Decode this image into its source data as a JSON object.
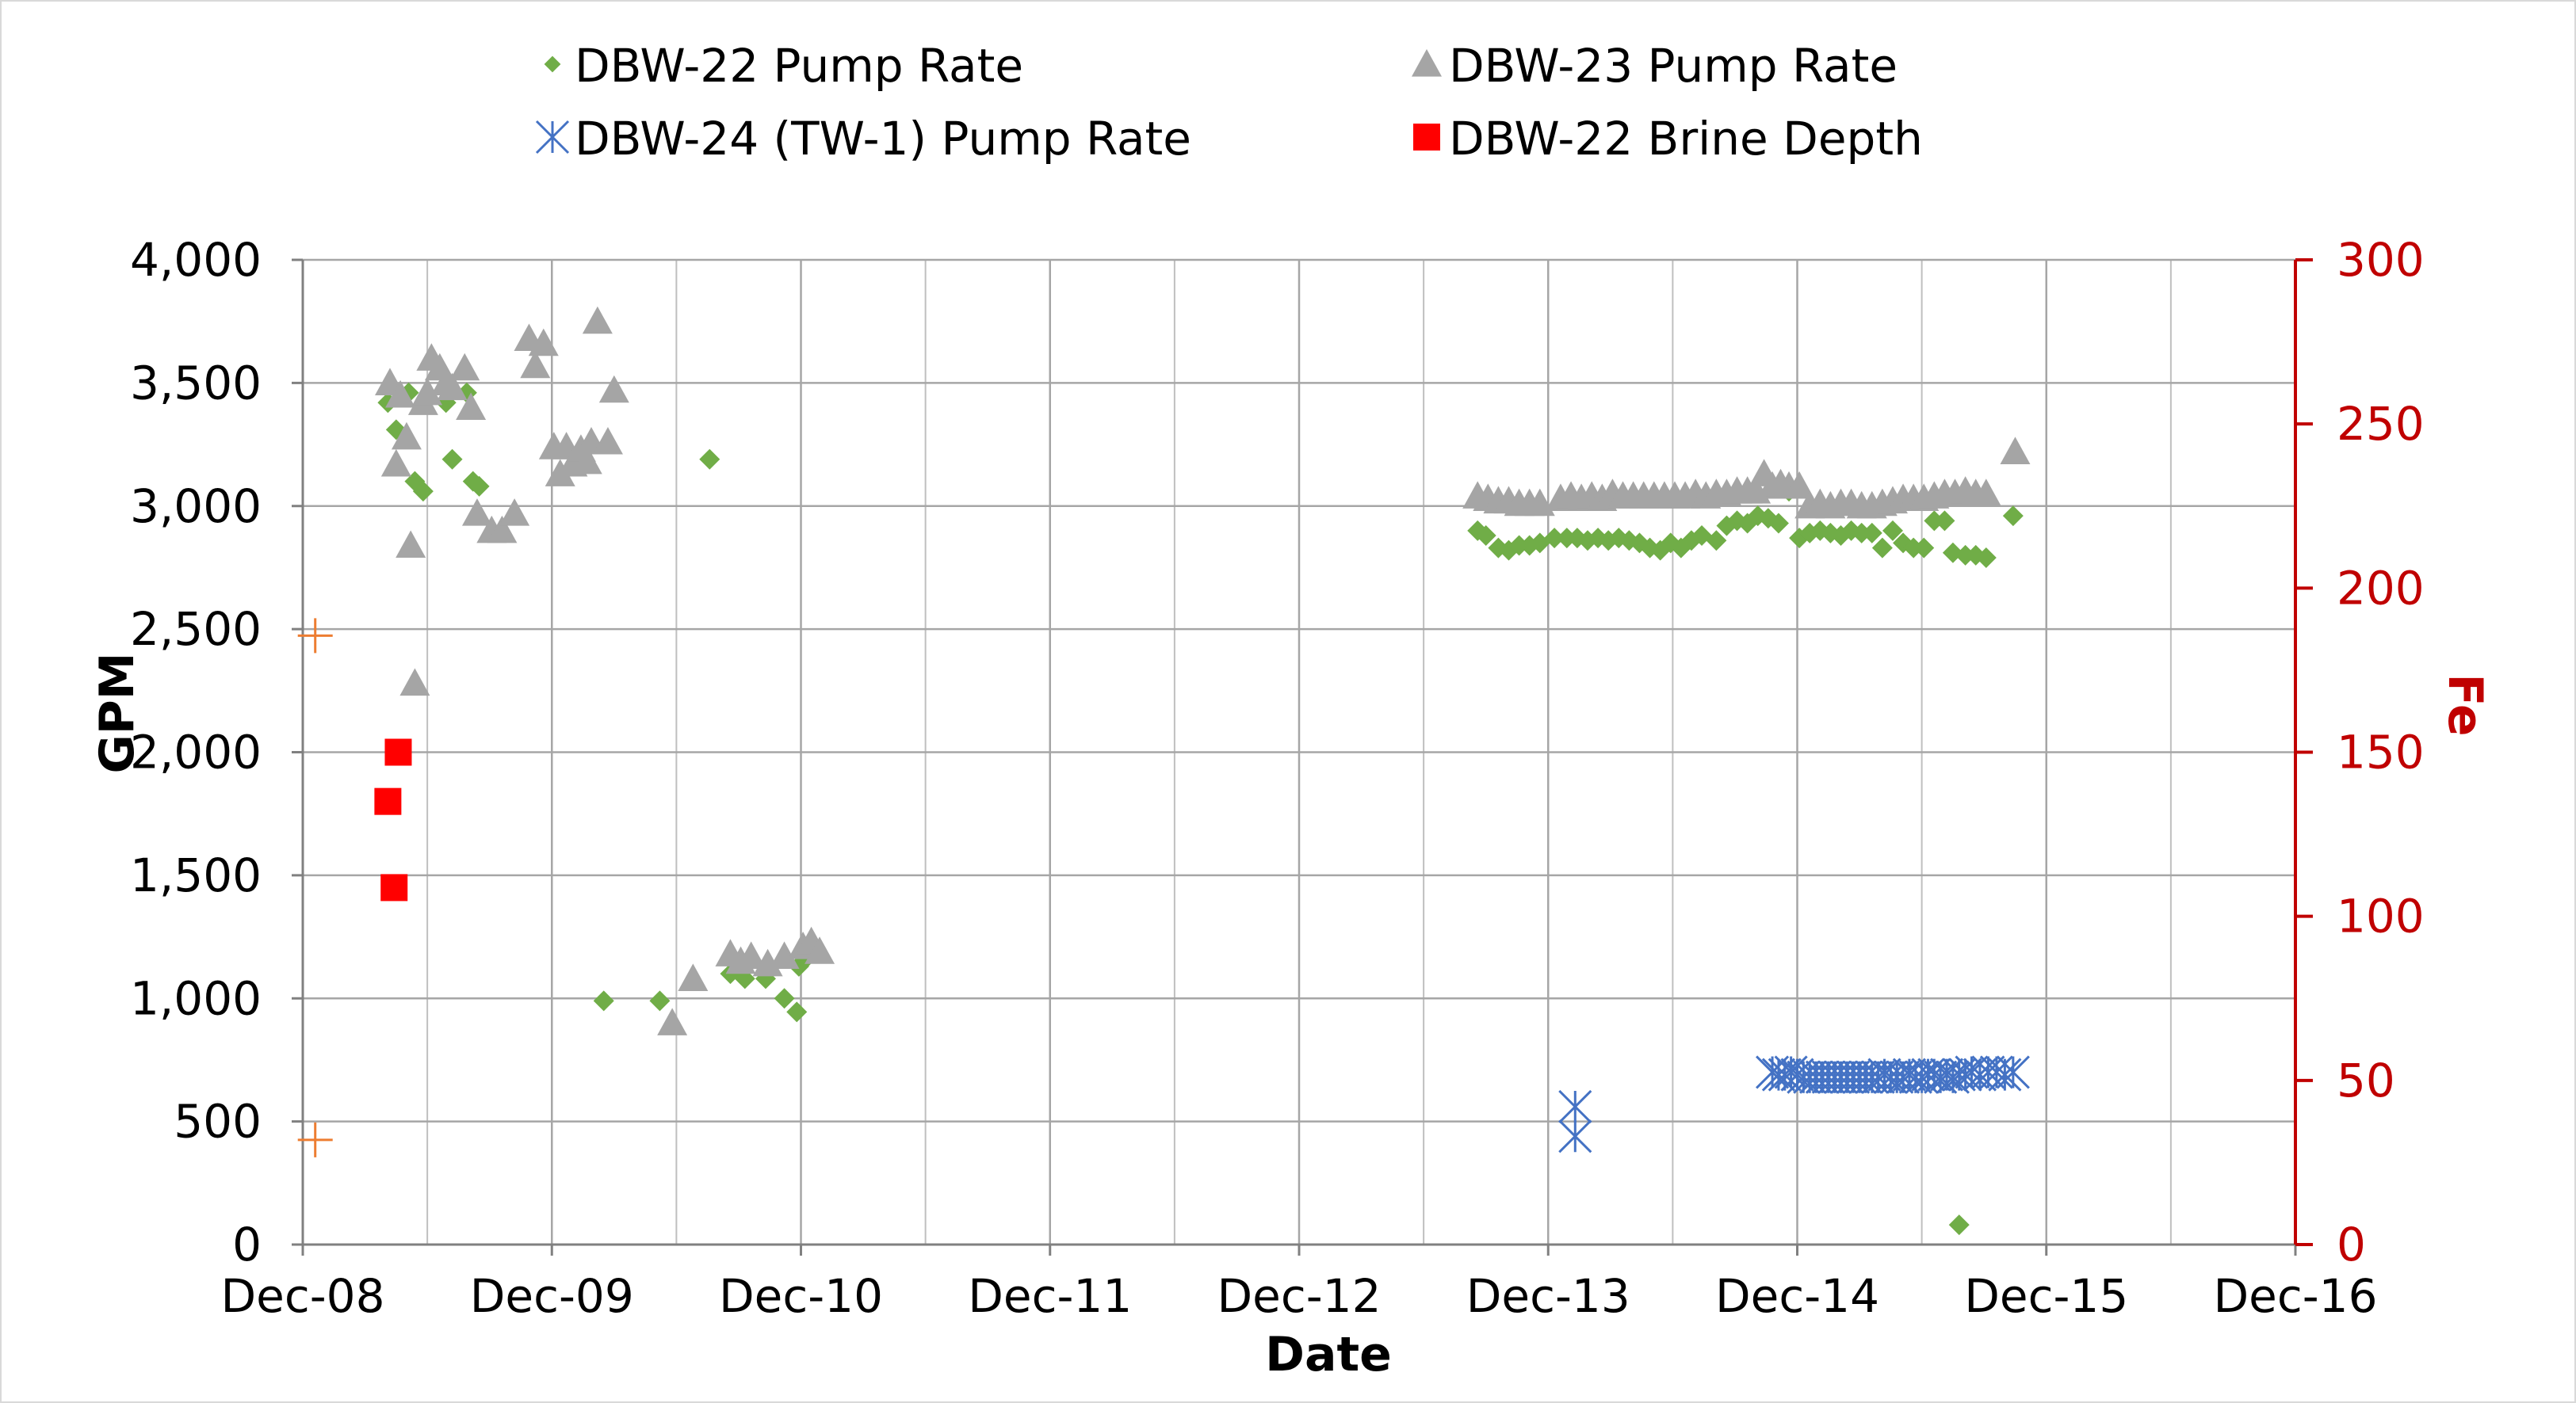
{
  "chart_data": {
    "type": "scatter",
    "xlabel": "Date",
    "ylabel": "GPM",
    "y2label": "Fe",
    "x_unit": "months since Dec-08",
    "xlim": [
      0,
      96
    ],
    "ylim": [
      0,
      4000
    ],
    "y2lim": [
      0,
      300
    ],
    "x_ticks": [
      {
        "value": 0,
        "label": "Dec-08"
      },
      {
        "value": 12,
        "label": "Dec-09"
      },
      {
        "value": 24,
        "label": "Dec-10"
      },
      {
        "value": 36,
        "label": "Dec-11"
      },
      {
        "value": 48,
        "label": "Dec-12"
      },
      {
        "value": 60,
        "label": "Dec-13"
      },
      {
        "value": 72,
        "label": "Dec-14"
      },
      {
        "value": 84,
        "label": "Dec-15"
      },
      {
        "value": 96,
        "label": "Dec-16"
      }
    ],
    "y_ticks": [
      {
        "value": 0,
        "label": "0"
      },
      {
        "value": 500,
        "label": "500"
      },
      {
        "value": 1000,
        "label": "1,000"
      },
      {
        "value": 1500,
        "label": "1,500"
      },
      {
        "value": 2000,
        "label": "2,000"
      },
      {
        "value": 2500,
        "label": "2,500"
      },
      {
        "value": 3000,
        "label": "3,000"
      },
      {
        "value": 3500,
        "label": "3,500"
      },
      {
        "value": 4000,
        "label": "4,000"
      }
    ],
    "y2_ticks": [
      {
        "value": 0,
        "label": "0"
      },
      {
        "value": 50,
        "label": "50"
      },
      {
        "value": 100,
        "label": "100"
      },
      {
        "value": 150,
        "label": "150"
      },
      {
        "value": 200,
        "label": "200"
      },
      {
        "value": 250,
        "label": "250"
      },
      {
        "value": 300,
        "label": "300"
      }
    ],
    "grid": true,
    "legend_position": "top",
    "colors": {
      "dbw22": "#70ad47",
      "dbw23": "#a5a5a5",
      "dbw24": "#4472c4",
      "brine": "#ff0000",
      "fe": "#ed7d31",
      "y2axis": "#c00000",
      "grid": "#a6a6a6",
      "axis": "#808080"
    },
    "series": [
      {
        "name": "DBW-22 Pump Rate",
        "marker": "diamond",
        "color": "#70ad47",
        "axis": "left",
        "points": [
          [
            4.1,
            3420
          ],
          [
            4.5,
            3310
          ],
          [
            5.1,
            3460
          ],
          [
            5.4,
            3100
          ],
          [
            5.8,
            3060
          ],
          [
            6.9,
            3420
          ],
          [
            7.2,
            3190
          ],
          [
            7.9,
            3460
          ],
          [
            8.2,
            3100
          ],
          [
            8.5,
            3080
          ],
          [
            14.5,
            990
          ],
          [
            17.2,
            990
          ],
          [
            20.6,
            1100
          ],
          [
            21.3,
            1080
          ],
          [
            22.3,
            1080
          ],
          [
            23.2,
            1000
          ],
          [
            23.8,
            945
          ],
          [
            23.9,
            1130
          ],
          [
            24.1,
            1150
          ],
          [
            19.6,
            3190
          ],
          [
            56.6,
            2900
          ],
          [
            57.0,
            2880
          ],
          [
            57.6,
            2830
          ],
          [
            58.1,
            2820
          ],
          [
            58.6,
            2840
          ],
          [
            59.1,
            2840
          ],
          [
            59.6,
            2850
          ],
          [
            60.3,
            2870
          ],
          [
            60.9,
            2870
          ],
          [
            61.4,
            2870
          ],
          [
            61.9,
            2860
          ],
          [
            62.4,
            2870
          ],
          [
            62.9,
            2860
          ],
          [
            63.4,
            2870
          ],
          [
            63.9,
            2860
          ],
          [
            64.4,
            2850
          ],
          [
            64.9,
            2830
          ],
          [
            65.4,
            2820
          ],
          [
            65.9,
            2850
          ],
          [
            66.4,
            2830
          ],
          [
            66.9,
            2860
          ],
          [
            67.4,
            2880
          ],
          [
            68.1,
            2860
          ],
          [
            68.6,
            2920
          ],
          [
            69.1,
            2940
          ],
          [
            69.6,
            2930
          ],
          [
            70.1,
            2960
          ],
          [
            70.6,
            2950
          ],
          [
            71.1,
            2930
          ],
          [
            71.6,
            3060
          ],
          [
            72.1,
            2870
          ],
          [
            72.6,
            2890
          ],
          [
            73.1,
            2900
          ],
          [
            73.6,
            2890
          ],
          [
            74.1,
            2880
          ],
          [
            74.6,
            2900
          ],
          [
            75.1,
            2890
          ],
          [
            75.6,
            2890
          ],
          [
            76.1,
            2830
          ],
          [
            76.6,
            2900
          ],
          [
            77.1,
            2850
          ],
          [
            77.6,
            2830
          ],
          [
            78.1,
            2830
          ],
          [
            78.6,
            2940
          ],
          [
            79.1,
            2940
          ],
          [
            79.5,
            2810
          ],
          [
            80.1,
            2800
          ],
          [
            80.6,
            2800
          ],
          [
            81.1,
            2790
          ],
          [
            82.4,
            2960
          ],
          [
            79.8,
            80
          ]
        ]
      },
      {
        "name": "DBW-23 Pump Rate",
        "marker": "triangle",
        "color": "#a5a5a5",
        "axis": "left",
        "points": [
          [
            4.2,
            3500
          ],
          [
            4.5,
            3170
          ],
          [
            4.7,
            3450
          ],
          [
            5.0,
            3280
          ],
          [
            5.2,
            2840
          ],
          [
            5.4,
            2280
          ],
          [
            5.8,
            3420
          ],
          [
            6.0,
            3460
          ],
          [
            6.2,
            3600
          ],
          [
            6.6,
            3560
          ],
          [
            6.9,
            3500
          ],
          [
            7.2,
            3480
          ],
          [
            7.8,
            3560
          ],
          [
            8.1,
            3400
          ],
          [
            8.4,
            2970
          ],
          [
            9.1,
            2900
          ],
          [
            9.6,
            2900
          ],
          [
            10.2,
            2970
          ],
          [
            10.9,
            3680
          ],
          [
            11.2,
            3570
          ],
          [
            11.6,
            3660
          ],
          [
            12.1,
            3240
          ],
          [
            12.4,
            3130
          ],
          [
            12.7,
            3240
          ],
          [
            13.0,
            3170
          ],
          [
            13.4,
            3230
          ],
          [
            13.7,
            3180
          ],
          [
            13.9,
            3260
          ],
          [
            14.2,
            3750
          ],
          [
            14.7,
            3260
          ],
          [
            15.0,
            3470
          ],
          [
            17.8,
            900
          ],
          [
            18.8,
            1080
          ],
          [
            20.6,
            1180
          ],
          [
            21.1,
            1150
          ],
          [
            21.6,
            1170
          ],
          [
            22.4,
            1140
          ],
          [
            23.2,
            1170
          ],
          [
            24.1,
            1210
          ],
          [
            24.5,
            1230
          ],
          [
            24.9,
            1190
          ],
          [
            56.6,
            3040
          ],
          [
            57.1,
            3030
          ],
          [
            57.6,
            3020
          ],
          [
            58.1,
            3020
          ],
          [
            58.6,
            3010
          ],
          [
            59.1,
            3010
          ],
          [
            59.6,
            3010
          ],
          [
            60.6,
            3030
          ],
          [
            61.1,
            3040
          ],
          [
            61.6,
            3030
          ],
          [
            62.1,
            3040
          ],
          [
            62.6,
            3030
          ],
          [
            63.1,
            3050
          ],
          [
            63.6,
            3040
          ],
          [
            64.1,
            3040
          ],
          [
            64.6,
            3040
          ],
          [
            65.1,
            3040
          ],
          [
            65.6,
            3040
          ],
          [
            66.1,
            3040
          ],
          [
            66.6,
            3040
          ],
          [
            67.1,
            3050
          ],
          [
            67.6,
            3040
          ],
          [
            68.1,
            3050
          ],
          [
            68.6,
            3050
          ],
          [
            69.1,
            3060
          ],
          [
            69.6,
            3060
          ],
          [
            70.0,
            3060
          ],
          [
            70.4,
            3130
          ],
          [
            70.8,
            3080
          ],
          [
            71.2,
            3090
          ],
          [
            71.6,
            3080
          ],
          [
            72.1,
            3080
          ],
          [
            72.6,
            3000
          ],
          [
            73.1,
            3010
          ],
          [
            73.6,
            3000
          ],
          [
            74.1,
            3010
          ],
          [
            74.6,
            3010
          ],
          [
            75.1,
            3000
          ],
          [
            75.6,
            3000
          ],
          [
            76.1,
            3010
          ],
          [
            76.6,
            3020
          ],
          [
            77.1,
            3030
          ],
          [
            77.6,
            3030
          ],
          [
            78.1,
            3030
          ],
          [
            78.6,
            3040
          ],
          [
            79.1,
            3050
          ],
          [
            79.6,
            3050
          ],
          [
            80.1,
            3060
          ],
          [
            80.6,
            3050
          ],
          [
            81.1,
            3050
          ],
          [
            82.5,
            3220
          ]
        ]
      },
      {
        "name": "DBW-24 (TW-1) Pump Rate",
        "marker": "asterisk",
        "color": "#4472c4",
        "axis": "left",
        "points": [
          [
            61.3,
            560
          ],
          [
            61.3,
            440
          ],
          [
            70.8,
            700
          ],
          [
            71.1,
            690
          ],
          [
            71.4,
            690
          ],
          [
            71.7,
            700
          ],
          [
            72.0,
            690
          ],
          [
            72.3,
            680
          ],
          [
            72.6,
            680
          ],
          [
            72.9,
            680
          ],
          [
            73.2,
            680
          ],
          [
            73.5,
            680
          ],
          [
            73.8,
            680
          ],
          [
            74.1,
            680
          ],
          [
            74.4,
            680
          ],
          [
            74.7,
            680
          ],
          [
            75.0,
            680
          ],
          [
            75.3,
            680
          ],
          [
            75.6,
            680
          ],
          [
            75.9,
            680
          ],
          [
            76.2,
            690
          ],
          [
            76.5,
            680
          ],
          [
            76.8,
            680
          ],
          [
            77.1,
            680
          ],
          [
            77.4,
            690
          ],
          [
            77.7,
            680
          ],
          [
            78.0,
            680
          ],
          [
            78.3,
            690
          ],
          [
            78.6,
            690
          ],
          [
            78.9,
            680
          ],
          [
            79.2,
            690
          ],
          [
            79.5,
            680
          ],
          [
            79.8,
            690
          ],
          [
            80.1,
            690
          ],
          [
            80.4,
            700
          ],
          [
            80.8,
            690
          ],
          [
            81.2,
            700
          ],
          [
            81.6,
            700
          ],
          [
            82.0,
            690
          ],
          [
            82.4,
            700
          ]
        ]
      },
      {
        "name": "DBW-22 Brine Depth",
        "marker": "square",
        "color": "#ff0000",
        "axis": "left",
        "points": [
          [
            4.1,
            1800
          ],
          [
            4.4,
            1450
          ],
          [
            4.6,
            2000
          ]
        ]
      },
      {
        "name": "Fe",
        "marker": "plus",
        "color": "#ed7d31",
        "axis": "right",
        "points": [
          [
            0.6,
            185.5
          ],
          [
            0.6,
            31.9
          ]
        ]
      }
    ]
  }
}
